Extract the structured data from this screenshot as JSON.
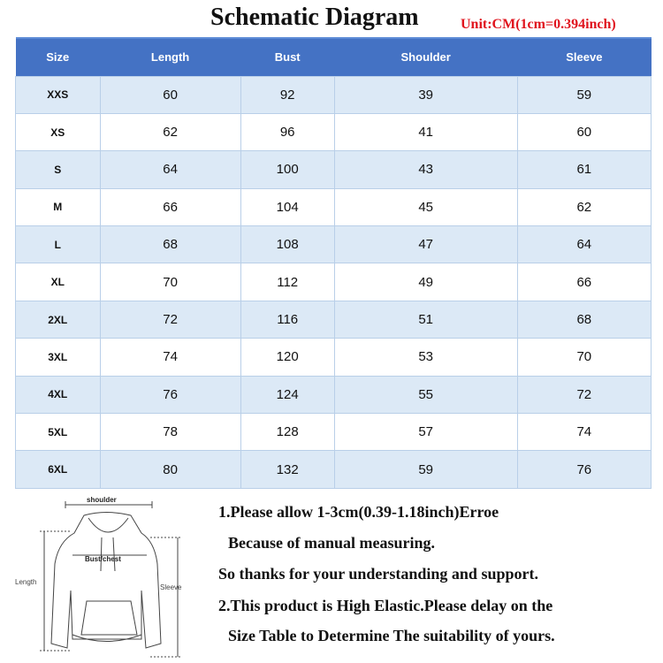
{
  "title": "Schematic Diagram",
  "unit": "Unit:CM(1cm=0.394inch)",
  "table": {
    "headers": [
      "Size",
      "Length",
      "Bust",
      "Shoulder",
      "Sleeve"
    ],
    "rows": [
      [
        "XXS",
        "60",
        "92",
        "39",
        "59"
      ],
      [
        "XS",
        "62",
        "96",
        "41",
        "60"
      ],
      [
        "S",
        "64",
        "100",
        "43",
        "61"
      ],
      [
        "M",
        "66",
        "104",
        "45",
        "62"
      ],
      [
        "L",
        "68",
        "108",
        "47",
        "64"
      ],
      [
        "XL",
        "70",
        "112",
        "49",
        "66"
      ],
      [
        "2XL",
        "72",
        "116",
        "51",
        "68"
      ],
      [
        "3XL",
        "74",
        "120",
        "53",
        "70"
      ],
      [
        "4XL",
        "76",
        "124",
        "55",
        "72"
      ],
      [
        "5XL",
        "78",
        "128",
        "57",
        "74"
      ],
      [
        "6XL",
        "80",
        "132",
        "59",
        "76"
      ]
    ]
  },
  "diagram": {
    "shoulder": "shoulder",
    "bust": "Bust/chest",
    "length": "Length",
    "sleeve": "Sleeve"
  },
  "notes": [
    "1.Please allow 1-3cm(0.39-1.18inch)Erroe",
    "Because of manual measuring.",
    "So thanks for your understanding and support.",
    "2.This product is High Elastic.Please delay on the",
    "Size Table to Determine The suitability of yours."
  ],
  "colors": {
    "header": "#4472c4",
    "row_alt": "#dce9f6",
    "unit": "#e0141e"
  }
}
